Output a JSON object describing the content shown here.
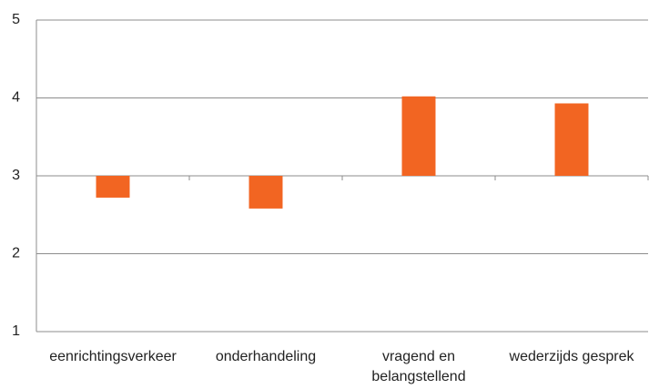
{
  "chart_data": {
    "type": "bar",
    "categories": [
      "eenrichtingsverkeer",
      "onderhandeling",
      "vragend en belangstellend",
      "wederzijds gesprek"
    ],
    "values": [
      2.72,
      2.58,
      4.02,
      3.93
    ],
    "color": "#f26522",
    "ylim": [
      1,
      5
    ],
    "yticks": [
      1,
      2,
      3,
      4,
      5
    ],
    "grid": true,
    "x_axis_crosses_at": 3
  }
}
